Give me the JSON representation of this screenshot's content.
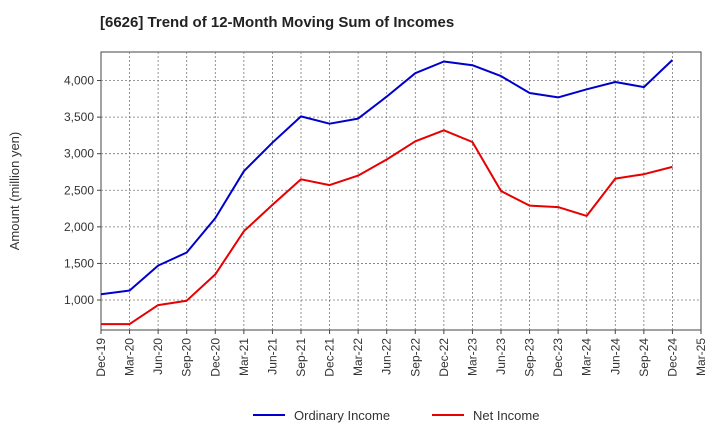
{
  "chart_data": {
    "type": "line",
    "title": "[6626]  Trend of 12-Month Moving Sum of Incomes",
    "xlabel": "",
    "ylabel": "Amount (million yen)",
    "x": [
      "Dec-19",
      "Mar-20",
      "Jun-20",
      "Sep-20",
      "Dec-20",
      "Mar-21",
      "Jun-21",
      "Sep-21",
      "Dec-21",
      "Mar-22",
      "Jun-22",
      "Sep-22",
      "Dec-22",
      "Mar-23",
      "Jun-23",
      "Sep-23",
      "Dec-23",
      "Mar-24",
      "Jun-24",
      "Sep-24",
      "Dec-24",
      "Mar-25"
    ],
    "yticks": [
      1000,
      1500,
      2000,
      2500,
      3000,
      3500,
      4000
    ],
    "ytick_labels": [
      "1,000",
      "1,500",
      "2,000",
      "2,500",
      "3,000",
      "3,500",
      "4,000"
    ],
    "ylim": [
      590,
      4390
    ],
    "grid": true,
    "legend_position": "bottom",
    "series": [
      {
        "name": "Ordinary Income",
        "color": "#0000cc",
        "values": [
          1080,
          1130,
          1470,
          1650,
          2120,
          2760,
          3150,
          3510,
          3410,
          3480,
          3780,
          4100,
          4260,
          4210,
          4060,
          3830,
          3770,
          3880,
          3980,
          3910,
          4280,
          null
        ]
      },
      {
        "name": "Net Income",
        "color": "#e60000",
        "values": [
          670,
          670,
          930,
          990,
          1350,
          1940,
          2300,
          2650,
          2570,
          2700,
          2920,
          3170,
          3320,
          3160,
          2490,
          2290,
          2270,
          2150,
          2660,
          2720,
          2820,
          null
        ]
      }
    ]
  }
}
